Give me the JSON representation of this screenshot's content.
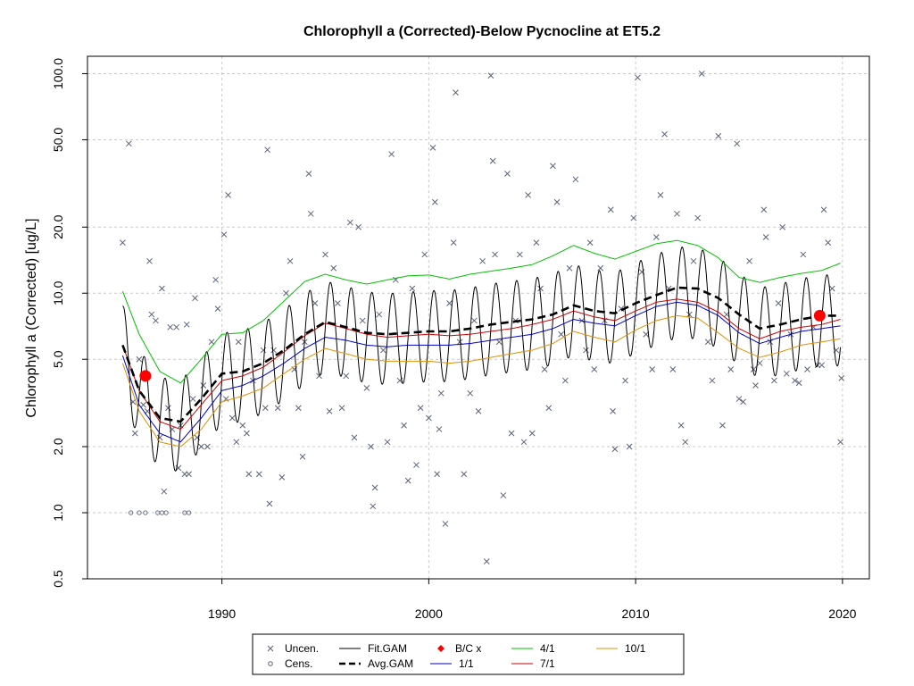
{
  "chart_data": {
    "type": "line",
    "title": "Chlorophyll a (Corrected)-Below Pycnocline at ET5.2",
    "ylabel": "Chlorophyll a (Corrected) [ug/L]",
    "xlabel": "",
    "y_scale": "log",
    "xlim": [
      1983.5,
      2021.3
    ],
    "ylim": [
      0.5,
      120
    ],
    "x_ticks": [
      1990,
      2000,
      2010,
      2020
    ],
    "y_ticks": [
      0.5,
      1.0,
      2.0,
      5.0,
      10.0,
      20.0,
      50.0,
      100.0
    ],
    "y_tick_labels": [
      "0.5",
      "1.0",
      "2.0",
      "5.0",
      "10.0",
      "20.0",
      "50.0",
      "100.0"
    ],
    "grid": true,
    "legend_position": "bottom",
    "legend": {
      "entries": [
        {
          "key": "uncen",
          "label": "Uncen.",
          "symbol": "x",
          "color": "#5a6378"
        },
        {
          "key": "cens",
          "label": "Cens.",
          "symbol": "o",
          "color": "#5a6378"
        },
        {
          "key": "fit",
          "label": "Fit.GAM",
          "symbol": "line",
          "color": "#000000"
        },
        {
          "key": "avg",
          "label": "Avg.GAM",
          "symbol": "dash",
          "color": "#000000"
        },
        {
          "key": "bc",
          "label": "B/C x",
          "symbol": "diamond",
          "color": "#ff0000"
        },
        {
          "key": "q1",
          "label": "1/1",
          "symbol": "line",
          "color": "#0000cc"
        },
        {
          "key": "q4",
          "label": "4/1",
          "symbol": "line",
          "color": "#00c000"
        },
        {
          "key": "q7",
          "label": "7/1",
          "symbol": "line",
          "color": "#cc0000"
        },
        {
          "key": "q10",
          "label": "10/1",
          "symbol": "line",
          "color": "#e09000"
        }
      ]
    },
    "series": [
      {
        "key": "avg",
        "color": "#000000",
        "x": [
          1985.2,
          1986,
          1987,
          1988,
          1989,
          1990,
          1991,
          1992,
          1993,
          1994,
          1995,
          1996,
          1997,
          1998,
          1999,
          2000,
          2001,
          2002,
          2003,
          2004,
          2005,
          2006,
          2007,
          2008,
          2009,
          2010,
          2011,
          2012,
          2013,
          2014,
          2015,
          2016,
          2017,
          2018,
          2019,
          2019.9
        ],
        "y": [
          5.8,
          3.6,
          2.7,
          2.6,
          3.3,
          4.3,
          4.4,
          4.8,
          5.5,
          6.5,
          7.4,
          7.0,
          6.6,
          6.5,
          6.6,
          6.7,
          6.7,
          6.9,
          7.2,
          7.4,
          7.6,
          8.0,
          8.8,
          8.3,
          8.1,
          9.0,
          9.8,
          10.6,
          10.5,
          9.5,
          8.0,
          6.9,
          7.2,
          7.6,
          7.9,
          7.9
        ]
      },
      {
        "key": "q1",
        "color": "#0000cc",
        "x": [
          1985.2,
          1986,
          1987,
          1988,
          1989,
          1990,
          1991,
          1992,
          1993,
          1994,
          1995,
          1996,
          1997,
          1998,
          1999,
          2000,
          2001,
          2002,
          2003,
          2004,
          2005,
          2006,
          2007,
          2008,
          2009,
          2010,
          2011,
          2012,
          2013,
          2014,
          2015,
          2016,
          2017,
          2018,
          2019,
          2019.9
        ],
        "y": [
          5.2,
          3.1,
          2.3,
          2.1,
          2.7,
          3.6,
          3.8,
          4.2,
          4.8,
          5.6,
          6.3,
          6.1,
          5.8,
          5.7,
          5.8,
          5.8,
          5.8,
          5.9,
          6.1,
          6.3,
          6.5,
          6.9,
          7.6,
          7.3,
          7.1,
          7.9,
          8.7,
          9.1,
          8.8,
          7.9,
          6.6,
          5.9,
          6.3,
          6.7,
          6.9,
          7.1
        ]
      },
      {
        "key": "q4",
        "color": "#00c000",
        "x": [
          1985.2,
          1986,
          1987,
          1988,
          1989,
          1990,
          1991,
          1992,
          1993,
          1994,
          1995,
          1996,
          1997,
          1998,
          1999,
          2000,
          2001,
          2002,
          2003,
          2004,
          2005,
          2006,
          2007,
          2008,
          2009,
          2010,
          2011,
          2012,
          2013,
          2014,
          2015,
          2016,
          2017,
          2018,
          2019,
          2019.9
        ],
        "y": [
          10.2,
          6.5,
          4.4,
          3.9,
          5.0,
          6.5,
          6.6,
          7.5,
          9.2,
          11.3,
          12.2,
          11.5,
          11.0,
          11.5,
          12.0,
          12.1,
          11.6,
          12.2,
          12.6,
          13.0,
          13.5,
          14.8,
          16.5,
          15.2,
          14.3,
          15.5,
          16.8,
          17.4,
          16.5,
          14.5,
          11.8,
          11.2,
          11.8,
          12.3,
          12.7,
          13.7
        ]
      },
      {
        "key": "q7",
        "color": "#cc0000",
        "x": [
          1985.2,
          1986,
          1987,
          1988,
          1989,
          1990,
          1991,
          1992,
          1993,
          1994,
          1995,
          1996,
          1997,
          1998,
          1999,
          2000,
          2001,
          2002,
          2003,
          2004,
          2005,
          2006,
          2007,
          2008,
          2009,
          2010,
          2011,
          2012,
          2013,
          2014,
          2015,
          2016,
          2017,
          2018,
          2019,
          2019.9
        ],
        "y": [
          5.8,
          3.6,
          2.6,
          2.4,
          3.1,
          4.0,
          4.2,
          4.6,
          5.4,
          6.4,
          7.3,
          6.9,
          6.5,
          6.3,
          6.4,
          6.5,
          6.4,
          6.5,
          6.7,
          6.9,
          7.2,
          7.6,
          8.3,
          7.8,
          7.5,
          8.3,
          9.1,
          9.4,
          9.1,
          8.2,
          6.9,
          6.2,
          6.7,
          7.0,
          7.2,
          7.6
        ]
      },
      {
        "key": "q10",
        "color": "#e09000",
        "x": [
          1985.2,
          1986,
          1987,
          1988,
          1989,
          1990,
          1991,
          1992,
          1993,
          1994,
          1995,
          1996,
          1997,
          1998,
          1999,
          2000,
          2001,
          2002,
          2003,
          2004,
          2005,
          2006,
          2007,
          2008,
          2009,
          2010,
          2011,
          2012,
          2013,
          2014,
          2015,
          2016,
          2017,
          2018,
          2019,
          2019.9
        ],
        "y": [
          4.8,
          2.9,
          2.1,
          2.0,
          2.4,
          3.2,
          3.4,
          3.7,
          4.3,
          5.0,
          5.6,
          5.3,
          5.0,
          4.9,
          4.9,
          4.9,
          4.8,
          4.9,
          5.1,
          5.3,
          5.5,
          5.9,
          6.7,
          6.3,
          6.0,
          6.8,
          7.5,
          7.9,
          7.7,
          6.6,
          5.6,
          5.1,
          5.4,
          5.8,
          6.0,
          6.2
        ]
      }
    ],
    "fit_gam": {
      "key": "fit",
      "color": "#000000",
      "seasonal_peak_month": 4,
      "peak_trough_ratio": 2.6
    },
    "bc_points": [
      {
        "x": 1986.3,
        "y": 4.2
      },
      {
        "x": 2018.9,
        "y": 7.9
      }
    ],
    "uncensored_points": [
      {
        "x": 1985.2,
        "y": 17
      },
      {
        "x": 1985.5,
        "y": 48
      },
      {
        "x": 1985.7,
        "y": 3.2
      },
      {
        "x": 1985.8,
        "y": 2.3
      },
      {
        "x": 1986.0,
        "y": 5.0
      },
      {
        "x": 1986.2,
        "y": 3.1
      },
      {
        "x": 1986.4,
        "y": 2.9
      },
      {
        "x": 1986.5,
        "y": 14
      },
      {
        "x": 1986.6,
        "y": 8.0
      },
      {
        "x": 1986.8,
        "y": 7.5
      },
      {
        "x": 1987.0,
        "y": 2.2
      },
      {
        "x": 1987.1,
        "y": 10.5
      },
      {
        "x": 1987.2,
        "y": 1.25
      },
      {
        "x": 1987.4,
        "y": 3.0
      },
      {
        "x": 1987.5,
        "y": 7.0
      },
      {
        "x": 1987.6,
        "y": 2.4
      },
      {
        "x": 1987.8,
        "y": 7.0
      },
      {
        "x": 1987.9,
        "y": 1.6
      },
      {
        "x": 1988.0,
        "y": 2.5
      },
      {
        "x": 1988.2,
        "y": 1.5
      },
      {
        "x": 1988.3,
        "y": 7.2
      },
      {
        "x": 1988.4,
        "y": 1.5
      },
      {
        "x": 1988.6,
        "y": 3.3
      },
      {
        "x": 1988.7,
        "y": 9.5
      },
      {
        "x": 1988.8,
        "y": 2.2
      },
      {
        "x": 1989.0,
        "y": 2.0
      },
      {
        "x": 1989.1,
        "y": 3.8
      },
      {
        "x": 1989.3,
        "y": 2.0
      },
      {
        "x": 1989.5,
        "y": 6.0
      },
      {
        "x": 1989.7,
        "y": 11.5
      },
      {
        "x": 1989.8,
        "y": 8.5
      },
      {
        "x": 1990.1,
        "y": 18.5
      },
      {
        "x": 1990.2,
        "y": 3.3
      },
      {
        "x": 1990.3,
        "y": 28
      },
      {
        "x": 1990.5,
        "y": 2.7
      },
      {
        "x": 1990.7,
        "y": 2.1
      },
      {
        "x": 1990.8,
        "y": 6.0
      },
      {
        "x": 1991.0,
        "y": 2.5
      },
      {
        "x": 1991.2,
        "y": 2.3
      },
      {
        "x": 1991.3,
        "y": 1.5
      },
      {
        "x": 1991.5,
        "y": 4.0
      },
      {
        "x": 1991.8,
        "y": 1.5
      },
      {
        "x": 1992.0,
        "y": 5.5
      },
      {
        "x": 1992.1,
        "y": 3.0
      },
      {
        "x": 1992.2,
        "y": 45
      },
      {
        "x": 1992.3,
        "y": 1.1
      },
      {
        "x": 1992.5,
        "y": 5.5
      },
      {
        "x": 1992.7,
        "y": 3.0
      },
      {
        "x": 1992.9,
        "y": 1.45
      },
      {
        "x": 1993.1,
        "y": 10.0
      },
      {
        "x": 1993.3,
        "y": 14
      },
      {
        "x": 1993.5,
        "y": 4.5
      },
      {
        "x": 1993.7,
        "y": 3.0
      },
      {
        "x": 1993.9,
        "y": 1.8
      },
      {
        "x": 1994.0,
        "y": 6.0
      },
      {
        "x": 1994.2,
        "y": 35
      },
      {
        "x": 1994.3,
        "y": 23
      },
      {
        "x": 1994.5,
        "y": 9.0
      },
      {
        "x": 1994.7,
        "y": 4.2
      },
      {
        "x": 1995.0,
        "y": 15
      },
      {
        "x": 1995.2,
        "y": 2.9
      },
      {
        "x": 1995.4,
        "y": 13
      },
      {
        "x": 1995.6,
        "y": 9.0
      },
      {
        "x": 1995.8,
        "y": 3.0
      },
      {
        "x": 1996.0,
        "y": 4.2
      },
      {
        "x": 1996.2,
        "y": 21
      },
      {
        "x": 1996.4,
        "y": 2.2
      },
      {
        "x": 1996.6,
        "y": 20
      },
      {
        "x": 1996.8,
        "y": 7.5
      },
      {
        "x": 1997.0,
        "y": 3.7
      },
      {
        "x": 1997.2,
        "y": 2.0
      },
      {
        "x": 1997.3,
        "y": 1.07
      },
      {
        "x": 1997.4,
        "y": 1.3
      },
      {
        "x": 1997.6,
        "y": 8.0
      },
      {
        "x": 1997.8,
        "y": 5.5
      },
      {
        "x": 1998.0,
        "y": 2.1
      },
      {
        "x": 1998.2,
        "y": 43
      },
      {
        "x": 1998.4,
        "y": 11.5
      },
      {
        "x": 1998.6,
        "y": 4.0
      },
      {
        "x": 1998.8,
        "y": 2.5
      },
      {
        "x": 1999.0,
        "y": 1.4
      },
      {
        "x": 1999.2,
        "y": 10.5
      },
      {
        "x": 1999.4,
        "y": 1.65
      },
      {
        "x": 1999.6,
        "y": 3.0
      },
      {
        "x": 1999.8,
        "y": 15
      },
      {
        "x": 2000.0,
        "y": 2.7
      },
      {
        "x": 2000.2,
        "y": 46
      },
      {
        "x": 2000.3,
        "y": 26
      },
      {
        "x": 2000.4,
        "y": 1.5
      },
      {
        "x": 2000.5,
        "y": 2.4
      },
      {
        "x": 2000.6,
        "y": 3.5
      },
      {
        "x": 2000.8,
        "y": 0.89
      },
      {
        "x": 2001.0,
        "y": 9.0
      },
      {
        "x": 2001.2,
        "y": 17
      },
      {
        "x": 2001.3,
        "y": 82
      },
      {
        "x": 2001.5,
        "y": 6.0
      },
      {
        "x": 2001.7,
        "y": 1.5
      },
      {
        "x": 2002.0,
        "y": 3.5
      },
      {
        "x": 2002.2,
        "y": 7.5
      },
      {
        "x": 2002.4,
        "y": 2.9
      },
      {
        "x": 2002.6,
        "y": 14
      },
      {
        "x": 2002.8,
        "y": 0.6
      },
      {
        "x": 2003.0,
        "y": 98
      },
      {
        "x": 2003.1,
        "y": 40
      },
      {
        "x": 2003.2,
        "y": 15
      },
      {
        "x": 2003.4,
        "y": 6.0
      },
      {
        "x": 2003.6,
        "y": 1.2
      },
      {
        "x": 2003.8,
        "y": 35
      },
      {
        "x": 2004.0,
        "y": 2.3
      },
      {
        "x": 2004.2,
        "y": 7.5
      },
      {
        "x": 2004.4,
        "y": 15
      },
      {
        "x": 2004.6,
        "y": 2.1
      },
      {
        "x": 2004.8,
        "y": 28
      },
      {
        "x": 2005.0,
        "y": 2.3
      },
      {
        "x": 2005.2,
        "y": 17
      },
      {
        "x": 2005.4,
        "y": 10.5
      },
      {
        "x": 2005.6,
        "y": 4.5
      },
      {
        "x": 2005.8,
        "y": 3.0
      },
      {
        "x": 2006.0,
        "y": 38
      },
      {
        "x": 2006.2,
        "y": 26
      },
      {
        "x": 2006.4,
        "y": 6.5
      },
      {
        "x": 2006.6,
        "y": 4.0
      },
      {
        "x": 2006.8,
        "y": 13
      },
      {
        "x": 2007.1,
        "y": 33
      },
      {
        "x": 2007.4,
        "y": 7.5
      },
      {
        "x": 2007.6,
        "y": 5.5
      },
      {
        "x": 2007.8,
        "y": 17
      },
      {
        "x": 2008.0,
        "y": 4.5
      },
      {
        "x": 2008.3,
        "y": 13
      },
      {
        "x": 2008.5,
        "y": 7.5
      },
      {
        "x": 2008.8,
        "y": 24
      },
      {
        "x": 2008.9,
        "y": 2.9
      },
      {
        "x": 2009.0,
        "y": 1.95
      },
      {
        "x": 2009.3,
        "y": 8.5
      },
      {
        "x": 2009.5,
        "y": 4.0
      },
      {
        "x": 2009.7,
        "y": 2.0
      },
      {
        "x": 2009.9,
        "y": 22
      },
      {
        "x": 2010.1,
        "y": 96
      },
      {
        "x": 2010.3,
        "y": 12.5
      },
      {
        "x": 2010.5,
        "y": 6.5
      },
      {
        "x": 2010.8,
        "y": 4.5
      },
      {
        "x": 2011.0,
        "y": 18
      },
      {
        "x": 2011.2,
        "y": 28
      },
      {
        "x": 2011.4,
        "y": 53
      },
      {
        "x": 2011.6,
        "y": 10.5
      },
      {
        "x": 2011.8,
        "y": 4.5
      },
      {
        "x": 2012.0,
        "y": 23
      },
      {
        "x": 2012.2,
        "y": 2.5
      },
      {
        "x": 2012.4,
        "y": 2.1
      },
      {
        "x": 2012.6,
        "y": 8.0
      },
      {
        "x": 2012.8,
        "y": 14
      },
      {
        "x": 2013.0,
        "y": 22
      },
      {
        "x": 2013.2,
        "y": 100
      },
      {
        "x": 2013.5,
        "y": 6.0
      },
      {
        "x": 2013.7,
        "y": 4.0
      },
      {
        "x": 2014.0,
        "y": 52
      },
      {
        "x": 2014.2,
        "y": 2.5
      },
      {
        "x": 2014.4,
        "y": 8.0
      },
      {
        "x": 2014.6,
        "y": 4.5
      },
      {
        "x": 2014.9,
        "y": 48
      },
      {
        "x": 2015.0,
        "y": 3.3
      },
      {
        "x": 2015.2,
        "y": 3.2
      },
      {
        "x": 2015.5,
        "y": 14
      },
      {
        "x": 2015.7,
        "y": 4.5
      },
      {
        "x": 2015.8,
        "y": 3.8
      },
      {
        "x": 2016.0,
        "y": 4.8
      },
      {
        "x": 2016.2,
        "y": 24
      },
      {
        "x": 2016.3,
        "y": 18
      },
      {
        "x": 2016.5,
        "y": 6.0
      },
      {
        "x": 2016.7,
        "y": 4.0
      },
      {
        "x": 2016.9,
        "y": 9.0
      },
      {
        "x": 2017.1,
        "y": 20
      },
      {
        "x": 2017.3,
        "y": 4.3
      },
      {
        "x": 2017.5,
        "y": 6.5
      },
      {
        "x": 2017.7,
        "y": 4.0
      },
      {
        "x": 2017.9,
        "y": 3.9
      },
      {
        "x": 2018.1,
        "y": 15
      },
      {
        "x": 2018.3,
        "y": 4.5
      },
      {
        "x": 2018.6,
        "y": 7.0
      },
      {
        "x": 2018.8,
        "y": 4.7
      },
      {
        "x": 2019.0,
        "y": 4.7
      },
      {
        "x": 2019.1,
        "y": 24
      },
      {
        "x": 2019.3,
        "y": 17
      },
      {
        "x": 2019.5,
        "y": 10.5
      },
      {
        "x": 2019.7,
        "y": 5.5
      },
      {
        "x": 2019.9,
        "y": 2.1
      },
      {
        "x": 2019.95,
        "y": 4.1
      }
    ],
    "censored_points": [
      {
        "x": 1985.6,
        "y": 1.0
      },
      {
        "x": 1986.0,
        "y": 1.0
      },
      {
        "x": 1986.3,
        "y": 1.0
      },
      {
        "x": 1986.9,
        "y": 1.0
      },
      {
        "x": 1987.1,
        "y": 1.0
      },
      {
        "x": 1987.3,
        "y": 1.0
      },
      {
        "x": 1988.2,
        "y": 1.0
      },
      {
        "x": 1988.4,
        "y": 1.0
      }
    ]
  }
}
